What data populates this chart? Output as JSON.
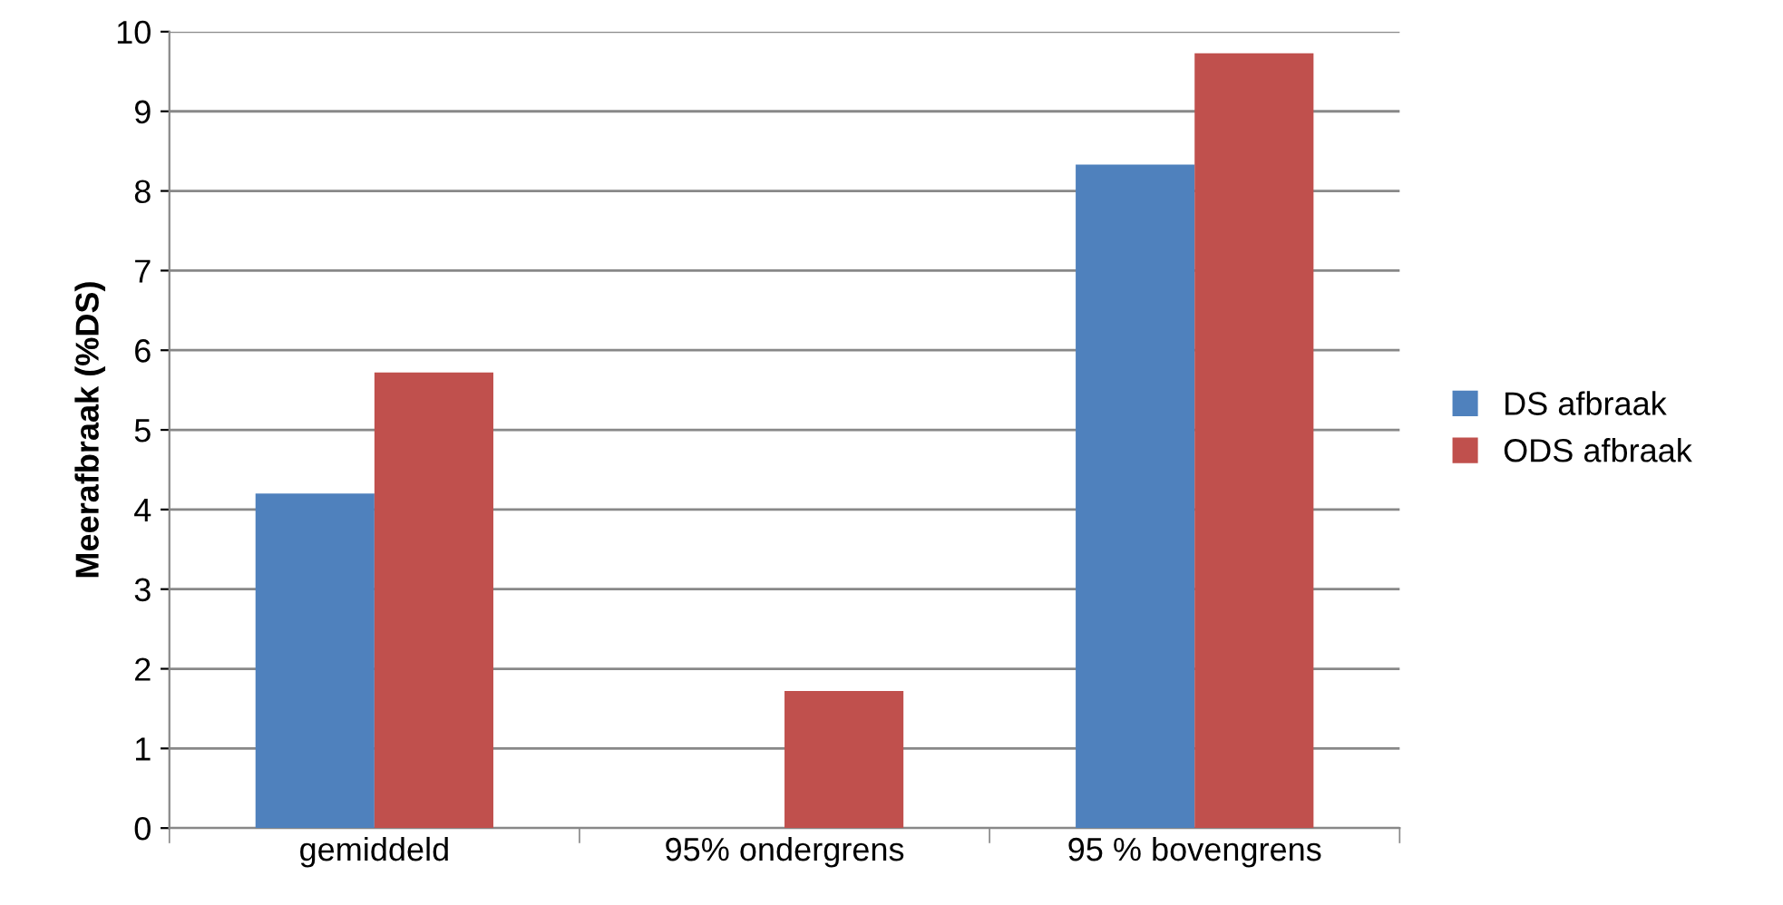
{
  "chart_data": {
    "type": "bar",
    "ylabel": "Meerafbraak (%DS)",
    "categories": [
      "gemiddeld",
      "95% ondergrens",
      "95 % bovengrens"
    ],
    "series": [
      {
        "name": "DS afbraak",
        "color": "#4f81bd",
        "values": [
          4.2,
          null,
          8.33
        ]
      },
      {
        "name": "ODS afbraak",
        "color": "#c0504d",
        "values": [
          5.72,
          1.72,
          9.73
        ]
      }
    ],
    "ylim": [
      0,
      10
    ],
    "yticks": [
      0,
      1,
      2,
      3,
      4,
      5,
      6,
      7,
      8,
      9,
      10
    ],
    "grid": "y",
    "legend": "right"
  }
}
